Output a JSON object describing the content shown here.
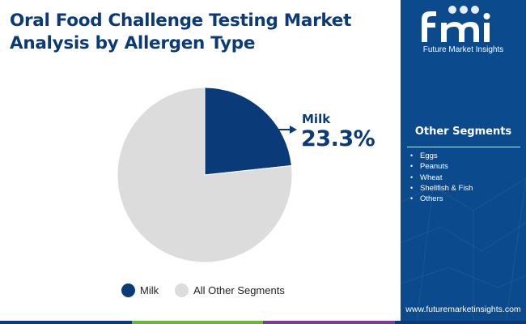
{
  "title": "Oral Food Challenge Testing Market Analysis by Allergen Type",
  "chart_data": {
    "type": "pie",
    "title": "Oral Food Challenge Testing Market Analysis by Allergen Type",
    "slices": [
      {
        "name": "Milk",
        "value": 23.3,
        "color": "#0b3a78"
      },
      {
        "name": "All Other Segments",
        "value": 76.7,
        "color": "#dcdcdc"
      }
    ],
    "callout": {
      "label": "Milk",
      "value": "23.3%"
    },
    "legend": {
      "position": "bottom",
      "entries": [
        "Milk",
        "All Other Segments"
      ]
    }
  },
  "side_panel": {
    "logo_text": "Future Market Insights",
    "segments_title": "Other Segments",
    "segments": [
      "Eggs",
      "Peanuts",
      "Wheat",
      "Shellfish & Fish",
      "Others"
    ],
    "website": "www.futuremarketinsights.com"
  },
  "colors": {
    "primary": "#0b3a78",
    "panel": "#0b4a8c",
    "other": "#dcdcdc",
    "bar": [
      "#0b3a78",
      "#6db33f",
      "#7a3e8e",
      "#0b3a78"
    ]
  }
}
